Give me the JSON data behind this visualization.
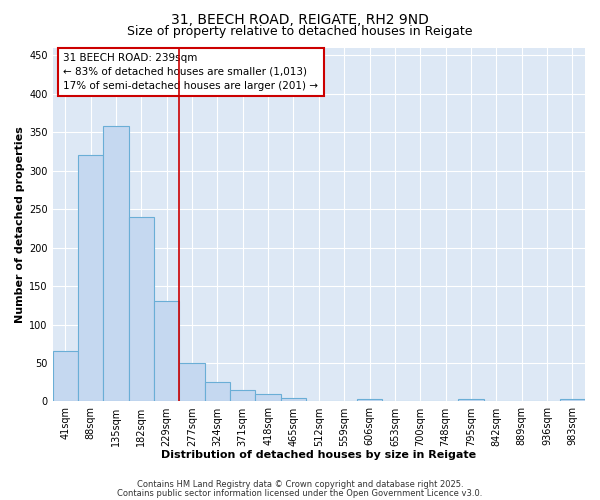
{
  "title1": "31, BEECH ROAD, REIGATE, RH2 9ND",
  "title2": "Size of property relative to detached houses in Reigate",
  "xlabel": "Distribution of detached houses by size in Reigate",
  "ylabel": "Number of detached properties",
  "categories": [
    "41sqm",
    "88sqm",
    "135sqm",
    "182sqm",
    "229sqm",
    "277sqm",
    "324sqm",
    "371sqm",
    "418sqm",
    "465sqm",
    "512sqm",
    "559sqm",
    "606sqm",
    "653sqm",
    "700sqm",
    "748sqm",
    "795sqm",
    "842sqm",
    "889sqm",
    "936sqm",
    "983sqm"
  ],
  "values": [
    65,
    320,
    358,
    240,
    130,
    50,
    25,
    15,
    10,
    4,
    0,
    0,
    3,
    0,
    0,
    0,
    3,
    0,
    0,
    0,
    3
  ],
  "bar_color": "#c5d8f0",
  "bar_edge_color": "#6aaed6",
  "red_line_x": 4.5,
  "annotation_title": "31 BEECH ROAD: 239sqm",
  "annotation_line1": "← 83% of detached houses are smaller (1,013)",
  "annotation_line2": "17% of semi-detached houses are larger (201) →",
  "annotation_box_color": "#ffffff",
  "annotation_box_edge": "#cc0000",
  "red_line_color": "#cc0000",
  "ylim": [
    0,
    460
  ],
  "yticks": [
    0,
    50,
    100,
    150,
    200,
    250,
    300,
    350,
    400,
    450
  ],
  "bg_color": "#ffffff",
  "plot_bg_color": "#dde8f5",
  "grid_color": "#ffffff",
  "footer1": "Contains HM Land Registry data © Crown copyright and database right 2025.",
  "footer2": "Contains public sector information licensed under the Open Government Licence v3.0.",
  "title_fontsize": 10,
  "subtitle_fontsize": 9,
  "axis_label_fontsize": 8,
  "tick_fontsize": 7,
  "annotation_fontsize": 7.5,
  "footer_fontsize": 6
}
